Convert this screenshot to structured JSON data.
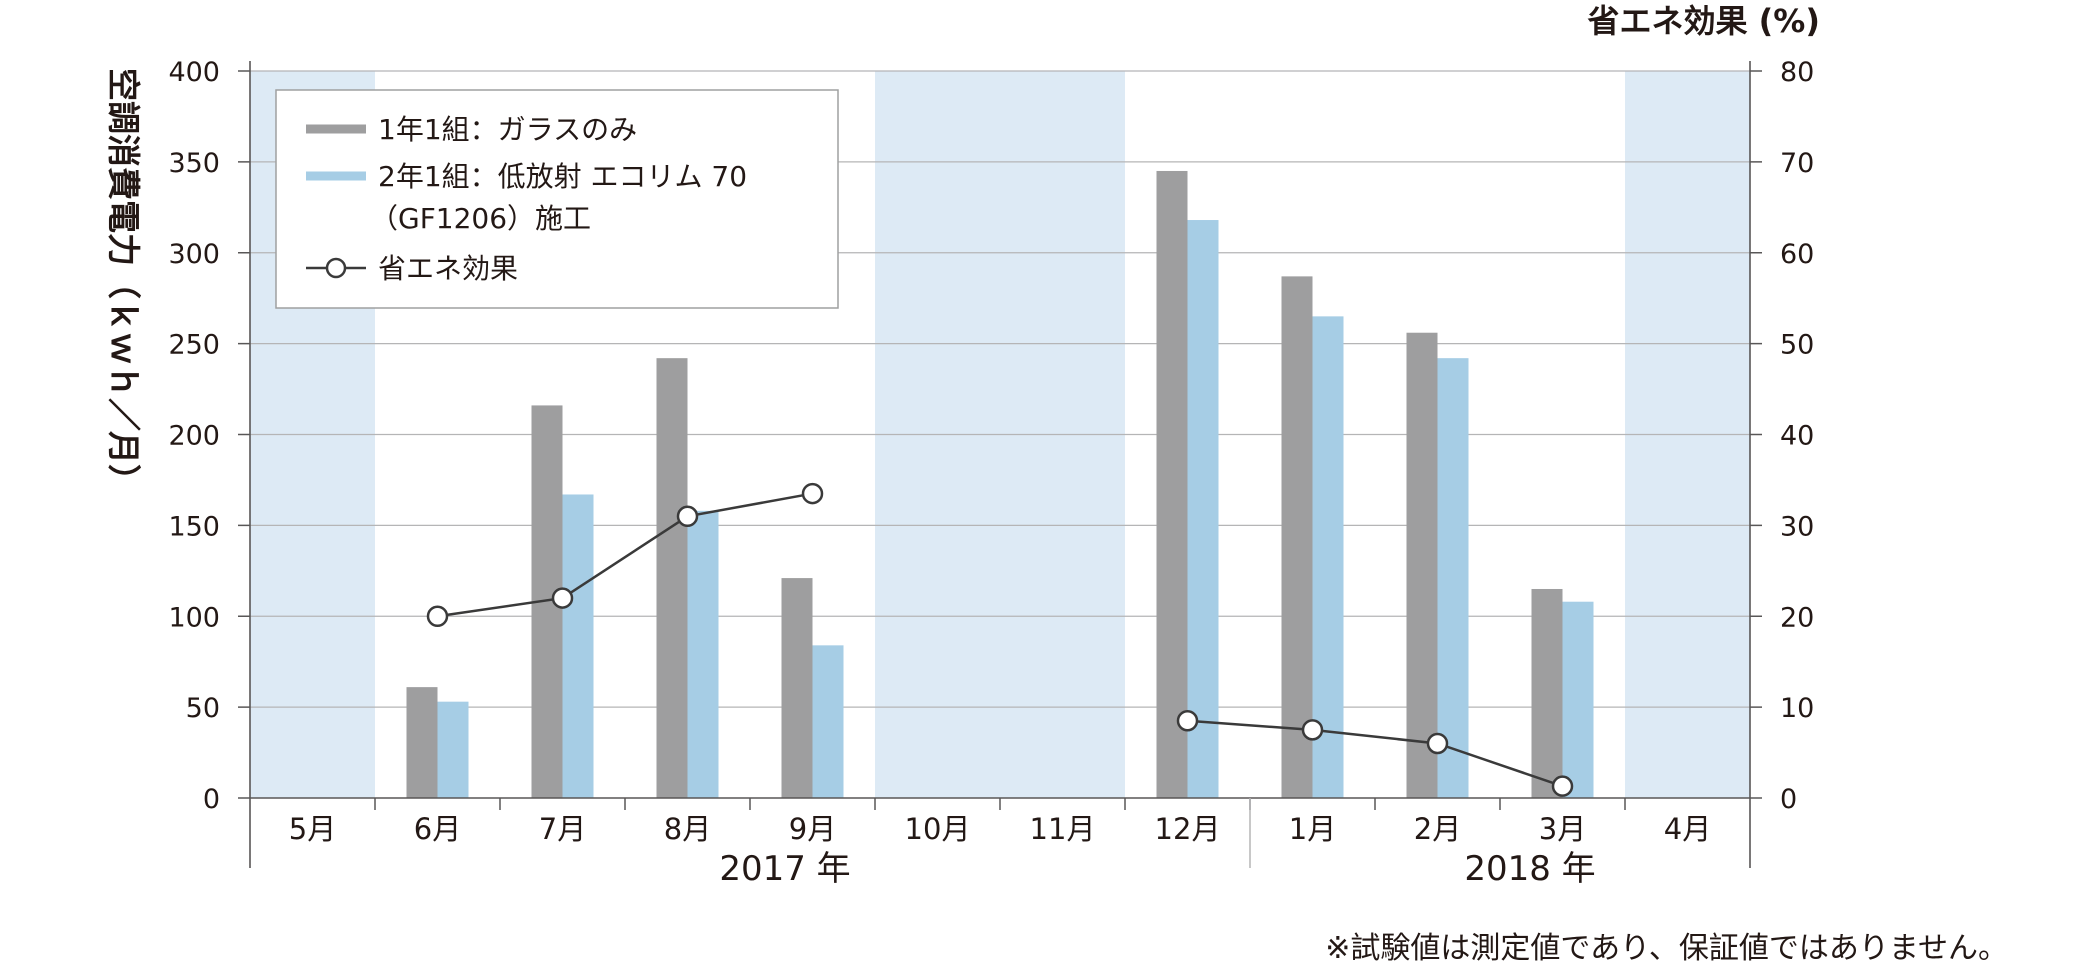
{
  "chart_data": {
    "type": "bar",
    "categories": [
      "5月",
      "6月",
      "7月",
      "8月",
      "9月",
      "10月",
      "11月",
      "12月",
      "1月",
      "2月",
      "3月",
      "4月"
    ],
    "year_groups": [
      "2017 年",
      "2018 年"
    ],
    "shaded_months": [
      "5月",
      "10月",
      "11月",
      "4月"
    ],
    "series": [
      {
        "name": "1年1組：ガラスのみ",
        "type": "bar",
        "axis": "left",
        "color": "#9e9e9f",
        "values": [
          null,
          61,
          216,
          242,
          121,
          null,
          null,
          345,
          287,
          256,
          115,
          null
        ]
      },
      {
        "name": "2年1組：低放射 エコリム 70",
        "name_line2": "（GF1206）施工",
        "type": "bar",
        "axis": "left",
        "color": "#a6cde5",
        "values": [
          null,
          53,
          167,
          158,
          84,
          null,
          null,
          318,
          265,
          242,
          108,
          null
        ]
      },
      {
        "name": "省エネ効果",
        "type": "line",
        "axis": "right",
        "color": "#3a3a3a",
        "values": [
          null,
          20,
          22,
          31,
          33.5,
          null,
          null,
          8.5,
          7.5,
          6,
          1.3,
          null
        ]
      }
    ],
    "ylabel": "空調消費電力（ｋｗｈ／月）",
    "ylim": [
      0,
      400
    ],
    "yticks": [
      0,
      50,
      100,
      150,
      200,
      250,
      300,
      350,
      400
    ],
    "y2label": "省エネ効果 (%)",
    "y2lim": [
      0,
      80
    ],
    "y2ticks": [
      0,
      10,
      20,
      30,
      40,
      50,
      60,
      70,
      80
    ],
    "grid": true,
    "legend": "top-left",
    "footnote": "※試験値は測定値であり、保証値ではありません。"
  },
  "colors": {
    "shade": "#ddeaf5",
    "grid": "#b5b5b6",
    "axis": "#595757",
    "marker_fill": "#ffffff"
  }
}
